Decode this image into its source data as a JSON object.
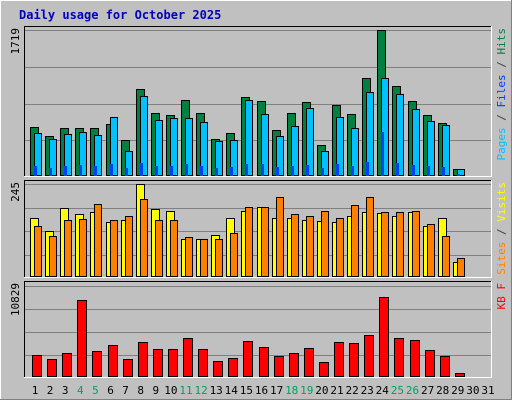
{
  "title": "Daily usage for October 2025",
  "colors": {
    "background": "#c0c0c0",
    "panel": "#c0c0c0",
    "title": "#0000c0",
    "hits": "#008040",
    "files": "#00c0ff",
    "pages": "#0040ff",
    "visits": "#ffff00",
    "sites": "#ff8000",
    "kbytes": "#ff0000",
    "weekend_day": "#00a060",
    "weekday": "#000000"
  },
  "chart_data": {
    "type": "bar",
    "title": "Daily usage for October 2025",
    "categories": [
      "1",
      "2",
      "3",
      "4",
      "5",
      "6",
      "7",
      "8",
      "9",
      "10",
      "11",
      "12",
      "13",
      "14",
      "15",
      "16",
      "17",
      "18",
      "19",
      "20",
      "21",
      "22",
      "23",
      "24",
      "25",
      "26",
      "27",
      "28",
      "29",
      "30",
      "31"
    ],
    "weekend_days": [
      "4",
      "5",
      "11",
      "12",
      "18",
      "19",
      "25",
      "26"
    ],
    "panels": [
      {
        "name": "hits-files-pages",
        "max_label": "1719",
        "ymax": 1719,
        "legend": [
          {
            "text": "Pages",
            "color": "#00c0ff"
          },
          {
            "text": " / ",
            "color": "#404040"
          },
          {
            "text": "Files",
            "color": "#0040ff"
          },
          {
            "text": " / ",
            "color": "#404040"
          },
          {
            "text": "Hits",
            "color": "#008040"
          }
        ],
        "series": [
          {
            "name": "Hits",
            "color": "#008040",
            "values": [
              580,
              470,
              560,
              560,
              560,
              610,
              420,
              1020,
              740,
              720,
              900,
              740,
              440,
              510,
              930,
              880,
              540,
              740,
              870,
              370,
              840,
              730,
              1150,
              1720,
              1060,
              880,
              720,
              620,
              80,
              0,
              0
            ]
          },
          {
            "name": "Files",
            "color": "#00c0ff",
            "values": [
              510,
              440,
              490,
              520,
              480,
              700,
              290,
              940,
              660,
              680,
              680,
              640,
              410,
              420,
              890,
              730,
              470,
              590,
              800,
              290,
              690,
              560,
              990,
              1150,
              960,
              790,
              650,
              600,
              80,
              0,
              0
            ]
          },
          {
            "name": "Pages",
            "color": "#0040ff",
            "values": [
              120,
              100,
              120,
              130,
              120,
              140,
              90,
              150,
              120,
              120,
              140,
              120,
              100,
              110,
              140,
              140,
              110,
              120,
              130,
              90,
              140,
              120,
              160,
              520,
              150,
              130,
              120,
              110,
              20,
              0,
              0
            ]
          }
        ]
      },
      {
        "name": "visits-sites",
        "max_label": "245",
        "ymax": 245,
        "legend": [
          {
            "text": "Sites",
            "color": "#ff8000"
          },
          {
            "text": " / ",
            "color": "#404040"
          },
          {
            "text": "Visits",
            "color": "#ffff00"
          }
        ],
        "series": [
          {
            "name": "Visits",
            "color": "#ffff00",
            "values": [
              155,
              120,
              183,
              165,
              170,
              145,
              150,
              245,
              180,
              175,
              100,
              100,
              110,
              155,
              175,
              185,
              155,
              155,
              150,
              148,
              145,
              160,
              170,
              168,
              160,
              170,
              135,
              155,
              40,
              0,
              0
            ]
          },
          {
            "name": "Sites",
            "color": "#ff8000",
            "values": [
              135,
              107,
              150,
              153,
              192,
              150,
              160,
              205,
              150,
              150,
              105,
              100,
              100,
              115,
              185,
              185,
              210,
              165,
              160,
              175,
              155,
              190,
              210,
              170,
              170,
              175,
              140,
              108,
              50,
              0,
              0
            ]
          }
        ]
      },
      {
        "name": "kbytes",
        "max_label": "10829",
        "ymax": 10829,
        "legend": [
          {
            "text": "KB F",
            "color": "#ff0000"
          }
        ],
        "series": [
          {
            "name": "KB F",
            "color": "#ff0000",
            "values": [
              2600,
              2200,
              2900,
              9200,
              3100,
              3800,
              2200,
              4200,
              3300,
              3350,
              4600,
              3300,
              1900,
              2300,
              4300,
              3600,
              2500,
              2800,
              3500,
              1800,
              4200,
              4100,
              5000,
              9500,
              4700,
              4400,
              3200,
              2500,
              500,
              0,
              0
            ]
          }
        ]
      }
    ]
  }
}
